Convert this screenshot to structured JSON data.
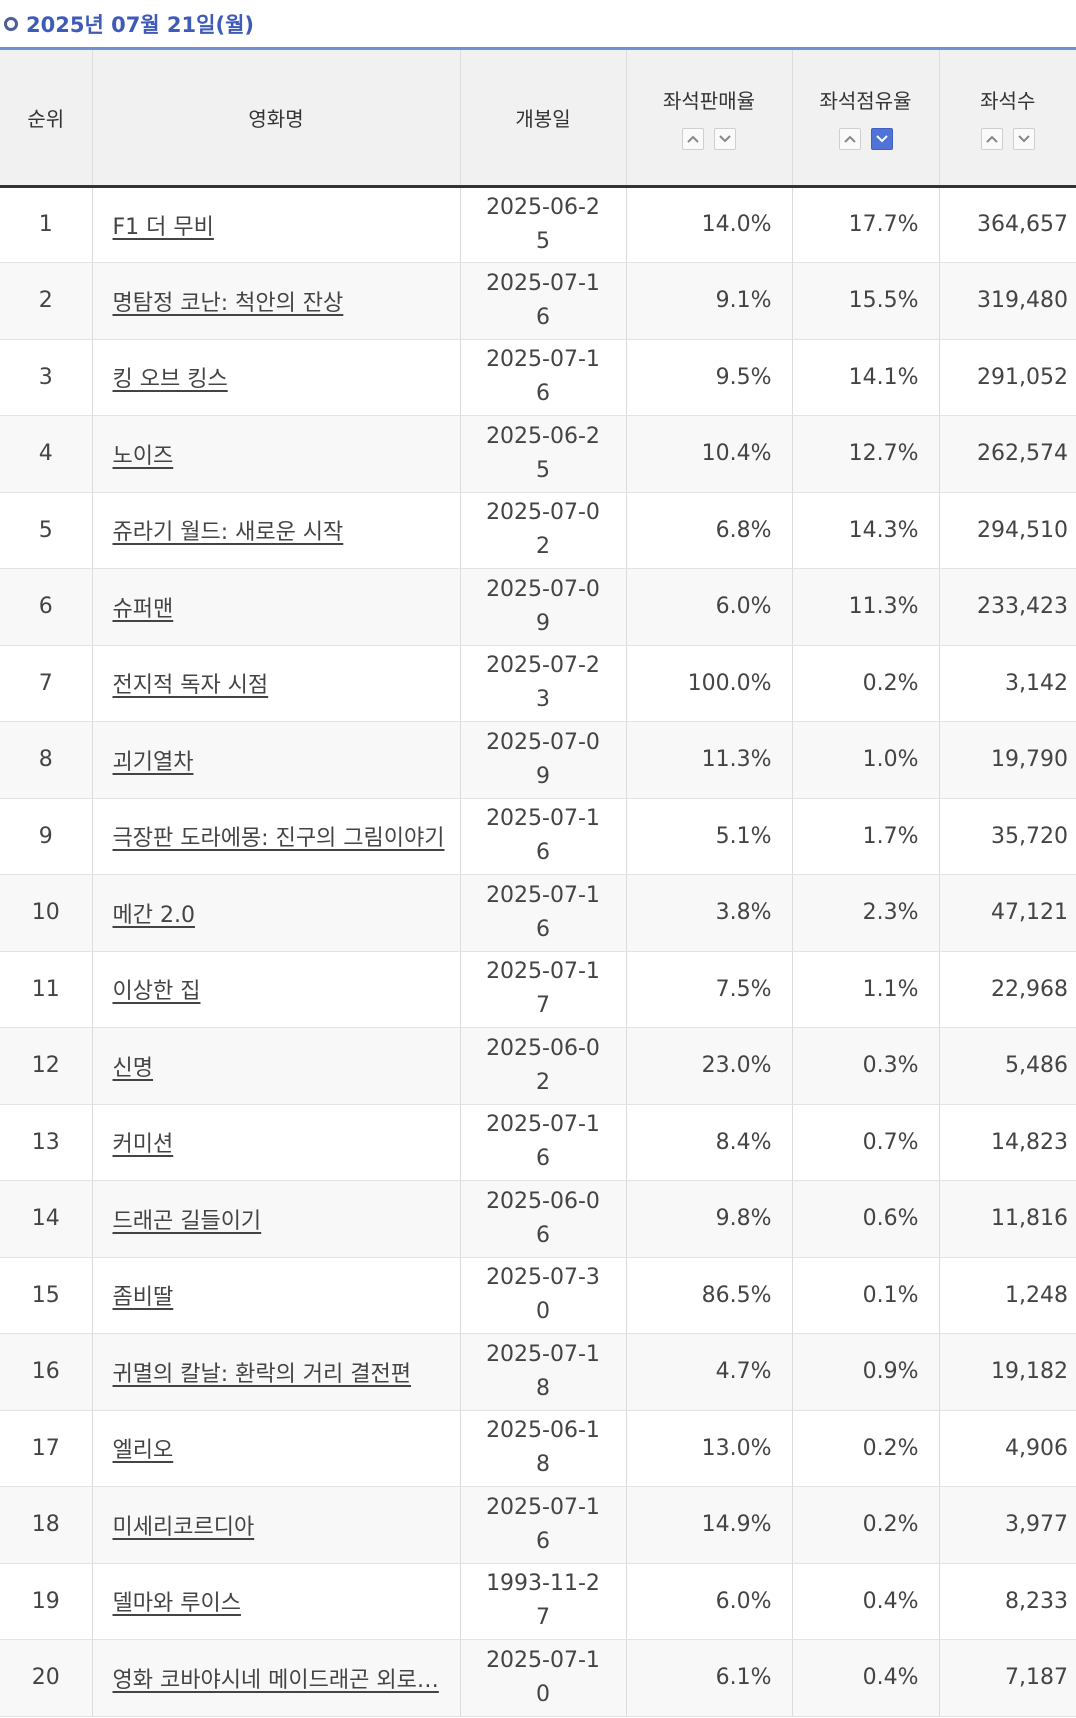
{
  "date_header": "2025년 07월 21일(월)",
  "columns": {
    "rank": "순위",
    "title": "영화명",
    "release": "개봉일",
    "sales_rate": "좌석판매율",
    "share": "좌석점유율",
    "seats": "좌석수"
  },
  "sort_state": {
    "active_column": "share",
    "active_direction": "desc"
  },
  "colors": {
    "accent": "#3e5bb8",
    "active_sort": "#4f73d6"
  },
  "rows": [
    {
      "rank": "1",
      "title": "F1 더 무비",
      "release": "2025-06-25",
      "sales_rate": "14.0%",
      "share": "17.7%",
      "seats": "364,657"
    },
    {
      "rank": "2",
      "title": "명탐정 코난: 척안의 잔상",
      "release": "2025-07-16",
      "sales_rate": "9.1%",
      "share": "15.5%",
      "seats": "319,480"
    },
    {
      "rank": "3",
      "title": "킹 오브 킹스",
      "release": "2025-07-16",
      "sales_rate": "9.5%",
      "share": "14.1%",
      "seats": "291,052"
    },
    {
      "rank": "4",
      "title": "노이즈",
      "release": "2025-06-25",
      "sales_rate": "10.4%",
      "share": "12.7%",
      "seats": "262,574"
    },
    {
      "rank": "5",
      "title": "쥬라기 월드: 새로운 시작",
      "release": "2025-07-02",
      "sales_rate": "6.8%",
      "share": "14.3%",
      "seats": "294,510"
    },
    {
      "rank": "6",
      "title": "슈퍼맨",
      "release": "2025-07-09",
      "sales_rate": "6.0%",
      "share": "11.3%",
      "seats": "233,423"
    },
    {
      "rank": "7",
      "title": "전지적 독자 시점",
      "release": "2025-07-23",
      "sales_rate": "100.0%",
      "share": "0.2%",
      "seats": "3,142"
    },
    {
      "rank": "8",
      "title": "괴기열차",
      "release": "2025-07-09",
      "sales_rate": "11.3%",
      "share": "1.0%",
      "seats": "19,790"
    },
    {
      "rank": "9",
      "title": "극장판 도라에몽: 진구의 그림이야기",
      "release": "2025-07-16",
      "sales_rate": "5.1%",
      "share": "1.7%",
      "seats": "35,720"
    },
    {
      "rank": "10",
      "title": "메간 2.0",
      "release": "2025-07-16",
      "sales_rate": "3.8%",
      "share": "2.3%",
      "seats": "47,121"
    },
    {
      "rank": "11",
      "title": "이상한 집",
      "release": "2025-07-17",
      "sales_rate": "7.5%",
      "share": "1.1%",
      "seats": "22,968"
    },
    {
      "rank": "12",
      "title": "신명",
      "release": "2025-06-02",
      "sales_rate": "23.0%",
      "share": "0.3%",
      "seats": "5,486"
    },
    {
      "rank": "13",
      "title": "커미션",
      "release": "2025-07-16",
      "sales_rate": "8.4%",
      "share": "0.7%",
      "seats": "14,823"
    },
    {
      "rank": "14",
      "title": "드래곤 길들이기",
      "release": "2025-06-06",
      "sales_rate": "9.8%",
      "share": "0.6%",
      "seats": "11,816"
    },
    {
      "rank": "15",
      "title": "좀비딸",
      "release": "2025-07-30",
      "sales_rate": "86.5%",
      "share": "0.1%",
      "seats": "1,248"
    },
    {
      "rank": "16",
      "title": "귀멸의 칼날: 환락의 거리 결전편",
      "release": "2025-07-18",
      "sales_rate": "4.7%",
      "share": "0.9%",
      "seats": "19,182"
    },
    {
      "rank": "17",
      "title": "엘리오",
      "release": "2025-06-18",
      "sales_rate": "13.0%",
      "share": "0.2%",
      "seats": "4,906"
    },
    {
      "rank": "18",
      "title": "미세리코르디아",
      "release": "2025-07-16",
      "sales_rate": "14.9%",
      "share": "0.2%",
      "seats": "3,977"
    },
    {
      "rank": "19",
      "title": "델마와 루이스",
      "release": "1993-11-27",
      "sales_rate": "6.0%",
      "share": "0.4%",
      "seats": "8,233"
    },
    {
      "rank": "20",
      "title": "영화 코바야시네 메이드래곤 외로…",
      "release": "2025-07-10",
      "sales_rate": "6.1%",
      "share": "0.4%",
      "seats": "7,187"
    }
  ]
}
